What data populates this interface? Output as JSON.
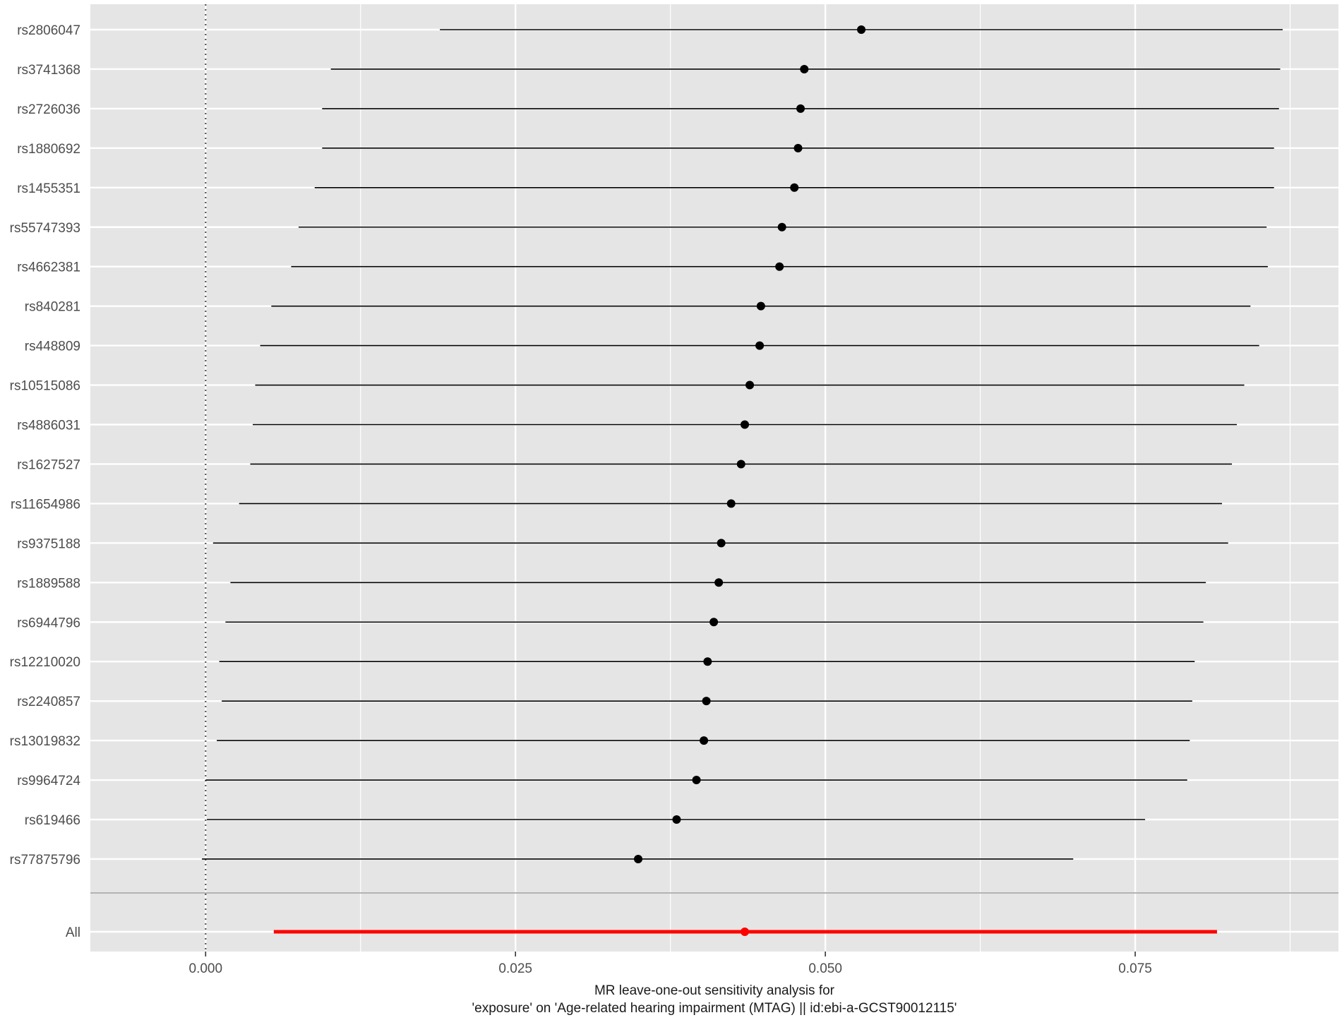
{
  "chart_data": {
    "type": "forest",
    "title": "",
    "xlabel": [
      "MR leave-one-out sensitivity analysis for",
      "'exposure' on 'Age-related hearing impairment (MTAG) || id:ebi-a-GCST90012115'"
    ],
    "ylabel": "",
    "xlim": [
      -0.0093,
      0.0914
    ],
    "x_ticks": [
      0.0,
      0.025,
      0.05,
      0.075
    ],
    "x_tick_labels": [
      "0.000",
      "0.025",
      "0.050",
      "0.075"
    ],
    "reference_line": 0,
    "grid": true,
    "colors": {
      "panel_bg": "#e5e5e5",
      "grid": "#ffffff",
      "point": "#000000",
      "line": "#000000",
      "overall": "#ff0000",
      "separator": "#b3b3b3",
      "ref_line": "#555555"
    },
    "rows": [
      {
        "label": "rs2806047",
        "b": 0.0529,
        "lo": 0.0189,
        "hi": 0.0869
      },
      {
        "label": "rs3741368",
        "b": 0.0483,
        "lo": 0.0101,
        "hi": 0.0867
      },
      {
        "label": "rs2726036",
        "b": 0.048,
        "lo": 0.0094,
        "hi": 0.0866
      },
      {
        "label": "rs1880692",
        "b": 0.0478,
        "lo": 0.0094,
        "hi": 0.0862
      },
      {
        "label": "rs1455351",
        "b": 0.0475,
        "lo": 0.0088,
        "hi": 0.0862
      },
      {
        "label": "rs55747393",
        "b": 0.0465,
        "lo": 0.0075,
        "hi": 0.0856
      },
      {
        "label": "rs4662381",
        "b": 0.0463,
        "lo": 0.0069,
        "hi": 0.0857
      },
      {
        "label": "rs840281",
        "b": 0.0448,
        "lo": 0.0053,
        "hi": 0.0843
      },
      {
        "label": "rs448809",
        "b": 0.0447,
        "lo": 0.0044,
        "hi": 0.085
      },
      {
        "label": "rs10515086",
        "b": 0.0439,
        "lo": 0.004,
        "hi": 0.0838
      },
      {
        "label": "rs4886031",
        "b": 0.0435,
        "lo": 0.0038,
        "hi": 0.0832
      },
      {
        "label": "rs1627527",
        "b": 0.0432,
        "lo": 0.0036,
        "hi": 0.0828
      },
      {
        "label": "rs11654986",
        "b": 0.0424,
        "lo": 0.0027,
        "hi": 0.082
      },
      {
        "label": "rs9375188",
        "b": 0.0416,
        "lo": 0.0006,
        "hi": 0.0825
      },
      {
        "label": "rs1889588",
        "b": 0.0414,
        "lo": 0.002,
        "hi": 0.0807
      },
      {
        "label": "rs6944796",
        "b": 0.041,
        "lo": 0.0016,
        "hi": 0.0805
      },
      {
        "label": "rs12210020",
        "b": 0.0405,
        "lo": 0.0011,
        "hi": 0.0798
      },
      {
        "label": "rs2240857",
        "b": 0.0404,
        "lo": 0.0013,
        "hi": 0.0796
      },
      {
        "label": "rs13019832",
        "b": 0.0402,
        "lo": 0.0009,
        "hi": 0.0794
      },
      {
        "label": "rs9964724",
        "b": 0.0396,
        "lo": 0.0,
        "hi": 0.0792
      },
      {
        "label": "rs619466",
        "b": 0.038,
        "lo": 0.0001,
        "hi": 0.0758
      },
      {
        "label": "rs77875796",
        "b": 0.0349,
        "lo": -0.0003,
        "hi": 0.07
      }
    ],
    "overall": {
      "label": "All",
      "b": 0.0435,
      "lo": 0.0055,
      "hi": 0.0816
    }
  }
}
